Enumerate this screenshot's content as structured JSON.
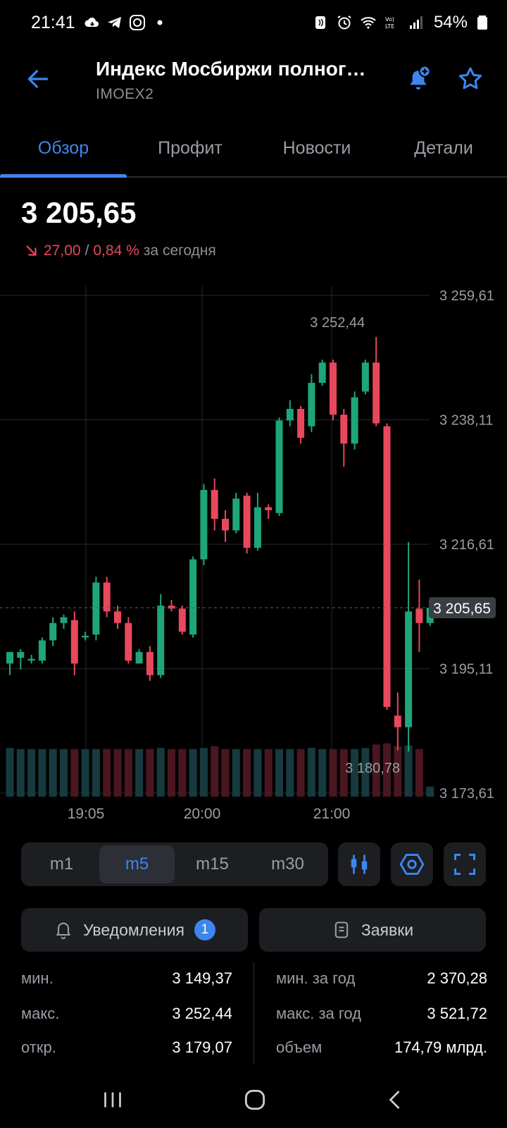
{
  "status_bar": {
    "time": "21:41",
    "battery_percent": "54%",
    "icons_left": [
      "cloud-icon",
      "telegram-icon",
      "app-icon",
      "dot-icon"
    ],
    "icons_right": [
      "nfc-icon",
      "alarm-icon",
      "wifi-icon",
      "volte-icon",
      "signal-icon",
      "battery-icon"
    ]
  },
  "header": {
    "title": "Индекс Мосбиржи полног…",
    "ticker": "IMOEX2"
  },
  "tabs": [
    {
      "label": "Обзор",
      "active": true
    },
    {
      "label": "Профит",
      "active": false
    },
    {
      "label": "Новости",
      "active": false
    },
    {
      "label": "Детали",
      "active": false
    }
  ],
  "quote": {
    "price": "3 205,65",
    "change_abs": "27,00",
    "separator": "/",
    "change_pct": "0,84 %",
    "period": "за сегодня",
    "direction": "down"
  },
  "chart_data": {
    "type": "candlestick",
    "y_ticks": [
      "3 259,61",
      "3 238,11",
      "3 216,61",
      "3 195,11",
      "3 173,61"
    ],
    "y_tick_values": [
      3259.61,
      3238.11,
      3216.61,
      3195.11,
      3173.61
    ],
    "x_ticks": [
      "19:05",
      "20:00",
      "21:00"
    ],
    "current_price_label": "3 205,65",
    "current_price": 3205.65,
    "max_label": "3 252,44",
    "max_value": 3252.44,
    "min_label": "3 180,78",
    "min_value": 3180.78,
    "colors": {
      "up": "#1fa57a",
      "down": "#e8485c",
      "grid": "#26282c"
    },
    "candles": [
      {
        "o": 3196.0,
        "h": 3198.0,
        "l": 3194.0,
        "c": 3198.0
      },
      {
        "o": 3197.0,
        "h": 3198.5,
        "l": 3195.0,
        "c": 3198.0
      },
      {
        "o": 3196.5,
        "h": 3197.5,
        "l": 3196.0,
        "c": 3196.8
      },
      {
        "o": 3196.5,
        "h": 3200.5,
        "l": 3196.0,
        "c": 3200.0
      },
      {
        "o": 3200.0,
        "h": 3204.0,
        "l": 3199.0,
        "c": 3203.0
      },
      {
        "o": 3203.0,
        "h": 3204.5,
        "l": 3202.0,
        "c": 3204.0
      },
      {
        "o": 3203.5,
        "h": 3205.0,
        "l": 3194.0,
        "c": 3196.0
      },
      {
        "o": 3200.5,
        "h": 3201.5,
        "l": 3200.0,
        "c": 3200.8
      },
      {
        "o": 3201.0,
        "h": 3211.0,
        "l": 3200.0,
        "c": 3210.0
      },
      {
        "o": 3210.0,
        "h": 3211.0,
        "l": 3204.0,
        "c": 3205.0
      },
      {
        "o": 3205.0,
        "h": 3206.0,
        "l": 3202.0,
        "c": 3203.0
      },
      {
        "o": 3203.0,
        "h": 3204.0,
        "l": 3196.0,
        "c": 3196.5
      },
      {
        "o": 3196.0,
        "h": 3198.5,
        "l": 3196.0,
        "c": 3198.0
      },
      {
        "o": 3198.0,
        "h": 3199.0,
        "l": 3193.0,
        "c": 3194.0
      },
      {
        "o": 3194.0,
        "h": 3208.0,
        "l": 3193.5,
        "c": 3206.0
      },
      {
        "o": 3206.0,
        "h": 3207.0,
        "l": 3205.0,
        "c": 3205.5
      },
      {
        "o": 3205.5,
        "h": 3206.0,
        "l": 3201.0,
        "c": 3201.5
      },
      {
        "o": 3201.0,
        "h": 3214.5,
        "l": 3200.5,
        "c": 3214.0
      },
      {
        "o": 3214.0,
        "h": 3227.0,
        "l": 3213.0,
        "c": 3226.0
      },
      {
        "o": 3226.0,
        "h": 3228.0,
        "l": 3219.0,
        "c": 3221.0
      },
      {
        "o": 3221.0,
        "h": 3222.5,
        "l": 3217.0,
        "c": 3219.0
      },
      {
        "o": 3219.0,
        "h": 3225.5,
        "l": 3218.5,
        "c": 3224.5
      },
      {
        "o": 3225.0,
        "h": 3225.5,
        "l": 3215.0,
        "c": 3216.0
      },
      {
        "o": 3216.0,
        "h": 3225.5,
        "l": 3215.5,
        "c": 3223.0
      },
      {
        "o": 3223.0,
        "h": 3223.5,
        "l": 3221.0,
        "c": 3222.5
      },
      {
        "o": 3222.0,
        "h": 3238.5,
        "l": 3221.5,
        "c": 3238.0
      },
      {
        "o": 3238.0,
        "h": 3241.5,
        "l": 3237.0,
        "c": 3240.0
      },
      {
        "o": 3240.0,
        "h": 3240.5,
        "l": 3234.0,
        "c": 3235.0
      },
      {
        "o": 3237.0,
        "h": 3246.0,
        "l": 3236.0,
        "c": 3244.5
      },
      {
        "o": 3244.5,
        "h": 3248.5,
        "l": 3244.0,
        "c": 3248.0
      },
      {
        "o": 3248.0,
        "h": 3248.5,
        "l": 3238.0,
        "c": 3239.0
      },
      {
        "o": 3239.0,
        "h": 3240.0,
        "l": 3230.0,
        "c": 3234.0
      },
      {
        "o": 3234.0,
        "h": 3243.0,
        "l": 3233.0,
        "c": 3242.0
      },
      {
        "o": 3243.0,
        "h": 3248.5,
        "l": 3242.5,
        "c": 3248.0
      },
      {
        "o": 3248.0,
        "h": 3252.44,
        "l": 3237.0,
        "c": 3237.5
      },
      {
        "o": 3237.0,
        "h": 3237.5,
        "l": 3188.0,
        "c": 3188.5
      },
      {
        "o": 3187.0,
        "h": 3191.0,
        "l": 3181.0,
        "c": 3185.0
      },
      {
        "o": 3185.0,
        "h": 3217.0,
        "l": 3180.78,
        "c": 3205.0
      },
      {
        "o": 3205.5,
        "h": 3210.5,
        "l": 3198.0,
        "c": 3203.0
      },
      {
        "o": 3203.0,
        "h": 3206.0,
        "l": 3202.5,
        "c": 3205.65
      }
    ],
    "volume": [
      0.82,
      0.8,
      0.8,
      0.8,
      0.8,
      0.8,
      0.8,
      0.8,
      0.8,
      0.8,
      0.8,
      0.8,
      0.8,
      0.8,
      0.82,
      0.8,
      0.8,
      0.8,
      0.82,
      0.85,
      0.8,
      0.8,
      0.8,
      0.8,
      0.8,
      0.8,
      0.8,
      0.8,
      0.82,
      0.8,
      0.8,
      0.8,
      0.8,
      0.82,
      0.88,
      0.9,
      0.85,
      0.86,
      0.8,
      0.15
    ]
  },
  "timeframes": [
    {
      "label": "m1",
      "active": false
    },
    {
      "label": "m5",
      "active": true
    },
    {
      "label": "m15",
      "active": false
    },
    {
      "label": "m30",
      "active": false
    }
  ],
  "actions": {
    "alerts_label": "Уведомления",
    "alerts_count": "1",
    "orders_label": "Заявки"
  },
  "stats": {
    "left": [
      {
        "label": "мин.",
        "value": "3 149,37"
      },
      {
        "label": "макс.",
        "value": "3 252,44"
      },
      {
        "label": "откр.",
        "value": "3 179,07"
      }
    ],
    "right": [
      {
        "label": "мин. за год",
        "value": "2 370,28"
      },
      {
        "label": "макс. за год",
        "value": "3 521,72"
      },
      {
        "label": "объем",
        "value": "174,79 млрд."
      }
    ]
  },
  "colors": {
    "accent": "#3d86f0",
    "negative": "#e8485c",
    "positive": "#1fa57a",
    "background": "#000000",
    "surface": "#1c1e22"
  }
}
